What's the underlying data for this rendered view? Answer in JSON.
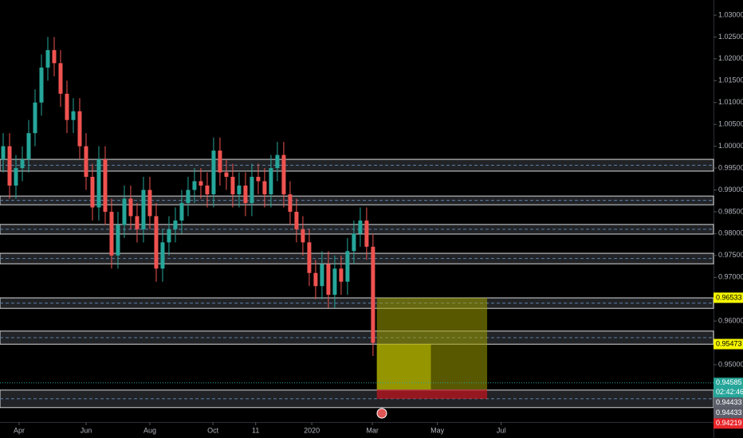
{
  "chart_data": {
    "type": "candlestick",
    "ylim": [
      0.93688,
      1.03346
    ],
    "yticks": [
      {
        "value": 1.03,
        "label": "1.03000"
      },
      {
        "value": 1.025,
        "label": "1.02500"
      },
      {
        "value": 1.02,
        "label": "1.02000"
      },
      {
        "value": 1.015,
        "label": "1.01500"
      },
      {
        "value": 1.01,
        "label": "1.01000"
      },
      {
        "value": 1.005,
        "label": "1.00500"
      },
      {
        "value": 1.0,
        "label": "1.00000"
      },
      {
        "value": 0.995,
        "label": "0.99500"
      },
      {
        "value": 0.99,
        "label": "0.99000"
      },
      {
        "value": 0.985,
        "label": "0.98500"
      },
      {
        "value": 0.98,
        "label": "0.98000"
      },
      {
        "value": 0.975,
        "label": "0.97500"
      },
      {
        "value": 0.97,
        "label": "0.97000"
      },
      {
        "value": 0.965,
        "label": "0.96500"
      },
      {
        "value": 0.96,
        "label": "0.96000"
      },
      {
        "value": 0.955,
        "label": "0.95500"
      },
      {
        "value": 0.95,
        "label": "0.95000"
      }
    ],
    "xlim": [
      -0.5,
      111.4
    ],
    "xticks": [
      {
        "value": 2.5,
        "label": "Apr"
      },
      {
        "value": 13,
        "label": "Jun"
      },
      {
        "value": 23,
        "label": "Aug"
      },
      {
        "value": 32.9,
        "label": "Oct"
      },
      {
        "value": 39.6,
        "label": "11"
      },
      {
        "value": 48.4,
        "label": "2020"
      },
      {
        "value": 57.9,
        "label": "Mar"
      },
      {
        "value": 68.1,
        "label": "May"
      },
      {
        "value": 78.1,
        "label": "Jul"
      }
    ],
    "up_color": "#26a69a",
    "down_color": "#ef5350",
    "open": [
      0.997,
      1.0,
      0.991,
      0.995,
      0.997,
      1.003,
      1.01,
      1.018,
      1.022,
      1.019,
      1.012,
      1.006,
      1.008,
      1.0,
      0.993,
      0.986,
      0.997,
      0.985,
      0.975,
      0.982,
      0.988,
      0.984,
      0.981,
      0.99,
      0.984,
      0.972,
      0.978,
      0.981,
      0.983,
      0.987,
      0.99,
      0.992,
      0.991,
      0.989,
      0.999,
      0.994,
      0.993,
      0.989,
      0.991,
      0.987,
      0.993,
      0.992,
      0.989,
      0.995,
      0.998,
      0.989,
      0.985,
      0.981,
      0.978,
      0.971,
      0.968,
      0.973,
      0.966,
      0.972,
      0.969,
      0.976,
      0.98,
      0.983,
      0.977
    ],
    "high": [
      1.003,
      1.003,
      0.998,
      1.0,
      1.006,
      1.013,
      1.021,
      1.025,
      1.025,
      1.022,
      1.015,
      1.011,
      1.011,
      1.003,
      0.996,
      1.0,
      1.0,
      0.988,
      0.985,
      0.991,
      0.991,
      0.987,
      0.993,
      0.993,
      0.987,
      0.981,
      0.984,
      0.986,
      0.99,
      0.993,
      0.995,
      0.995,
      0.994,
      1.002,
      1.002,
      0.997,
      0.996,
      0.994,
      0.994,
      0.996,
      0.996,
      0.995,
      0.998,
      1.001,
      1.001,
      0.992,
      0.988,
      0.984,
      0.981,
      0.974,
      0.976,
      0.976,
      0.975,
      0.975,
      0.979,
      0.983,
      0.986,
      0.986,
      0.98
    ],
    "low": [
      0.994,
      0.988,
      0.988,
      0.992,
      0.994,
      1.0,
      1.007,
      1.015,
      1.016,
      1.009,
      1.003,
      1.003,
      0.997,
      0.99,
      0.983,
      0.983,
      0.982,
      0.972,
      0.972,
      0.979,
      0.981,
      0.978,
      0.978,
      0.981,
      0.969,
      0.969,
      0.975,
      0.978,
      0.98,
      0.984,
      0.987,
      0.988,
      0.986,
      0.986,
      0.991,
      0.99,
      0.986,
      0.986,
      0.984,
      0.984,
      0.989,
      0.986,
      0.986,
      0.992,
      0.986,
      0.982,
      0.978,
      0.975,
      0.968,
      0.965,
      0.965,
      0.963,
      0.963,
      0.966,
      0.966,
      0.973,
      0.977,
      0.974,
      0.952
    ],
    "close": [
      1.0,
      0.991,
      0.995,
      0.997,
      1.003,
      1.01,
      1.018,
      1.022,
      1.019,
      1.012,
      1.006,
      1.008,
      1.0,
      0.993,
      0.986,
      0.997,
      0.985,
      0.975,
      0.982,
      0.988,
      0.984,
      0.981,
      0.99,
      0.984,
      0.972,
      0.978,
      0.981,
      0.983,
      0.987,
      0.99,
      0.992,
      0.991,
      0.989,
      0.999,
      0.994,
      0.993,
      0.989,
      0.991,
      0.987,
      0.993,
      0.992,
      0.989,
      0.995,
      0.998,
      0.989,
      0.985,
      0.981,
      0.978,
      0.971,
      0.968,
      0.973,
      0.966,
      0.972,
      0.969,
      0.976,
      0.98,
      0.983,
      0.977,
      0.955
    ],
    "zones": [
      [
        0.9943,
        0.997
      ],
      [
        0.9866,
        0.9886
      ],
      [
        0.9799,
        0.9821
      ],
      [
        0.9731,
        0.9755
      ],
      [
        0.9629,
        0.9653
      ],
      [
        0.9547,
        0.9577
      ],
      [
        0.9402,
        0.9442
      ]
    ],
    "position": {
      "start": 58.6,
      "end": 75.9,
      "target": 0.96533,
      "entry": 0.94433,
      "stop": 0.94219
    },
    "current_price": 0.94585,
    "countdown": "02:42:46",
    "price_tags": [
      {
        "value": 0.96533,
        "label": "0.96533",
        "color": "#f5f500"
      },
      {
        "value": 0.95473,
        "label": "0.95473",
        "color": "#f5f500"
      },
      {
        "value": 0.94585,
        "label": "0.94585",
        "color": "#26a69a"
      },
      {
        "value": 0.94433,
        "label": "0.94433",
        "color": "#5d606b"
      },
      {
        "value": 0.94433,
        "label": "0.94433",
        "color": "#5d606b"
      },
      {
        "value": 0.94219,
        "label": "0.94219",
        "color": "#e8262b"
      }
    ]
  }
}
